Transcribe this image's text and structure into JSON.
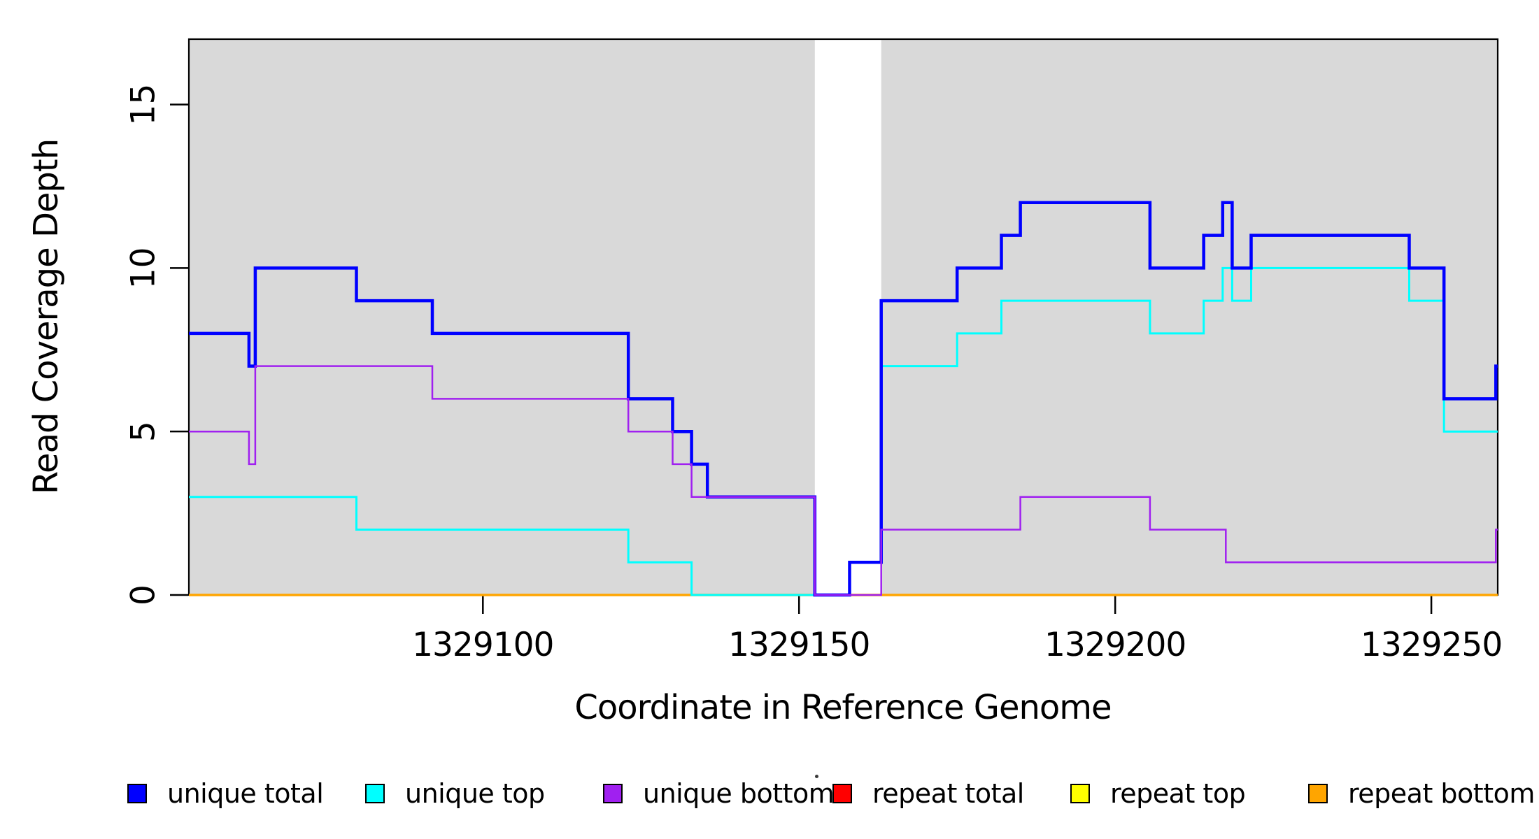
{
  "figure": {
    "background": "#ffffff",
    "band_color": "#d9d9d9",
    "axis_color": "#000000"
  },
  "chart_data": {
    "type": "line",
    "subtype": "step-coverage",
    "title": "",
    "xlabel": "Coordinate in Reference Genome",
    "ylabel": "Read Coverage Depth",
    "xlim": [
      1329053.5,
      1329260.5
    ],
    "ylim": [
      0,
      17
    ],
    "x_ticks": [
      1329100,
      1329150,
      1329200,
      1329250
    ],
    "y_ticks": [
      0,
      5,
      10,
      15
    ],
    "grid": false,
    "legend_position": "bottom",
    "shaded_regions": [
      {
        "x0": 1329053.5,
        "x1": 1329152.5,
        "color": "#d9d9d9"
      },
      {
        "x0": 1329163.0,
        "x1": 1329260.5,
        "color": "#d9d9d9"
      }
    ],
    "series": [
      {
        "name": "repeat total",
        "color": "#FF0000",
        "width": 2,
        "steps": [
          [
            1329053.5,
            0
          ],
          [
            1329260.5,
            0
          ]
        ]
      },
      {
        "name": "repeat top",
        "color": "#FFFF00",
        "width": 2,
        "steps": [
          [
            1329053.5,
            0
          ],
          [
            1329260.5,
            0
          ]
        ]
      },
      {
        "name": "repeat bottom",
        "color": "#FFA500",
        "width": 3.5,
        "steps": [
          [
            1329053.5,
            0
          ],
          [
            1329260.5,
            0
          ]
        ]
      },
      {
        "name": "unique top",
        "color": "#00FFFF",
        "width": 3,
        "steps": [
          [
            1329053.5,
            3
          ],
          [
            1329080,
            2
          ],
          [
            1329123,
            1
          ],
          [
            1329133,
            0
          ],
          [
            1329158,
            1
          ],
          [
            1329163,
            7
          ],
          [
            1329175,
            8
          ],
          [
            1329182,
            9
          ],
          [
            1329205.5,
            8
          ],
          [
            1329214,
            9
          ],
          [
            1329217,
            10
          ],
          [
            1329218.5,
            9
          ],
          [
            1329221.5,
            10
          ],
          [
            1329246.5,
            9
          ],
          [
            1329252,
            5
          ],
          [
            1329260.5,
            5
          ]
        ]
      },
      {
        "name": "unique total",
        "color": "#0000FF",
        "width": 4.5,
        "steps": [
          [
            1329053.5,
            8
          ],
          [
            1329063,
            7
          ],
          [
            1329064,
            10
          ],
          [
            1329080,
            9
          ],
          [
            1329092,
            8
          ],
          [
            1329123,
            6
          ],
          [
            1329130,
            5
          ],
          [
            1329133,
            4
          ],
          [
            1329135.5,
            3
          ],
          [
            1329152.5,
            0
          ],
          [
            1329158,
            1
          ],
          [
            1329163,
            9
          ],
          [
            1329175,
            10
          ],
          [
            1329182,
            11
          ],
          [
            1329185,
            12
          ],
          [
            1329205.5,
            10
          ],
          [
            1329214,
            11
          ],
          [
            1329217,
            12
          ],
          [
            1329218.5,
            10
          ],
          [
            1329221.5,
            11
          ],
          [
            1329246.5,
            10
          ],
          [
            1329252,
            6
          ],
          [
            1329260.2,
            7
          ],
          [
            1329260.5,
            7
          ]
        ]
      },
      {
        "name": "unique bottom",
        "color": "#A020F0",
        "width": 2.5,
        "steps": [
          [
            1329053.5,
            5
          ],
          [
            1329063,
            4
          ],
          [
            1329064,
            7
          ],
          [
            1329092,
            6
          ],
          [
            1329123,
            5
          ],
          [
            1329130,
            4
          ],
          [
            1329133,
            3
          ],
          [
            1329152.5,
            0
          ],
          [
            1329163,
            2
          ],
          [
            1329185,
            3
          ],
          [
            1329205.5,
            2
          ],
          [
            1329217.5,
            1
          ],
          [
            1329260.2,
            2
          ],
          [
            1329260.5,
            2
          ]
        ]
      }
    ],
    "legend": [
      {
        "label": "unique total",
        "color": "#0000FF"
      },
      {
        "label": "unique top",
        "color": "#00FFFF"
      },
      {
        "label": "unique bottom",
        "color": "#A020F0"
      },
      {
        "label": "repeat total",
        "color": "#FF0000"
      },
      {
        "label": "repeat top",
        "color": "#FFFF00"
      },
      {
        "label": "repeat bottom",
        "color": "#FFA500"
      }
    ]
  }
}
